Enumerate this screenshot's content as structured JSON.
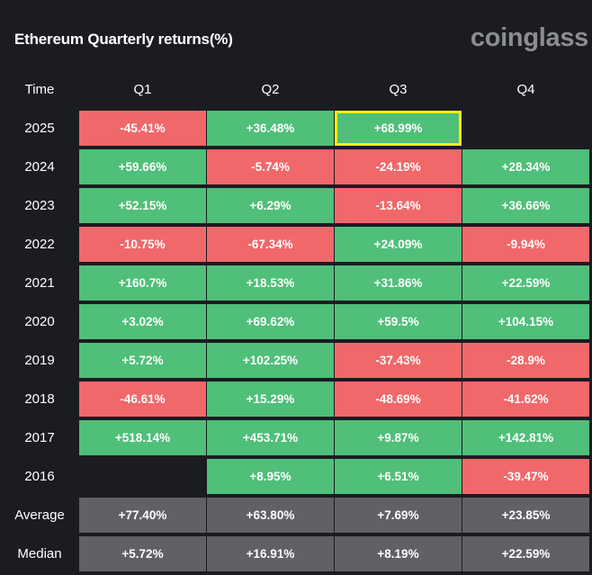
{
  "header": {
    "title": "Ethereum Quarterly returns(%)",
    "brand": "coinglass"
  },
  "colors": {
    "background": "#1b1c21",
    "positive": "#4fbf79",
    "negative": "#f0686a",
    "stat": "#606166",
    "highlight_border": "#f2f20a"
  },
  "chart_data": {
    "type": "table",
    "title": "Ethereum Quarterly returns(%)",
    "columns": [
      "Time",
      "Q1",
      "Q2",
      "Q3",
      "Q4"
    ],
    "rows": [
      {
        "label": "2025",
        "values": [
          "-45.41%",
          "+36.48%",
          "+68.99%",
          ""
        ],
        "highlight": [
          false,
          false,
          true,
          false
        ]
      },
      {
        "label": "2024",
        "values": [
          "+59.66%",
          "-5.74%",
          "-24.19%",
          "+28.34%"
        ]
      },
      {
        "label": "2023",
        "values": [
          "+52.15%",
          "+6.29%",
          "-13.64%",
          "+36.66%"
        ]
      },
      {
        "label": "2022",
        "values": [
          "-10.75%",
          "-67.34%",
          "+24.09%",
          "-9.94%"
        ]
      },
      {
        "label": "2021",
        "values": [
          "+160.7%",
          "+18.53%",
          "+31.86%",
          "+22.59%"
        ]
      },
      {
        "label": "2020",
        "values": [
          "+3.02%",
          "+69.62%",
          "+59.5%",
          "+104.15%"
        ]
      },
      {
        "label": "2019",
        "values": [
          "+5.72%",
          "+102.25%",
          "-37.43%",
          "-28.9%"
        ]
      },
      {
        "label": "2018",
        "values": [
          "-46.61%",
          "+15.29%",
          "-48.69%",
          "-41.62%"
        ]
      },
      {
        "label": "2017",
        "values": [
          "+518.14%",
          "+453.71%",
          "+9.87%",
          "+142.81%"
        ]
      },
      {
        "label": "2016",
        "values": [
          "",
          "+8.95%",
          "+6.51%",
          "-39.47%"
        ]
      }
    ],
    "summary": [
      {
        "label": "Average",
        "values": [
          "+77.40%",
          "+63.80%",
          "+7.69%",
          "+23.85%"
        ]
      },
      {
        "label": "Median",
        "values": [
          "+5.72%",
          "+16.91%",
          "+8.19%",
          "+22.59%"
        ]
      }
    ]
  }
}
